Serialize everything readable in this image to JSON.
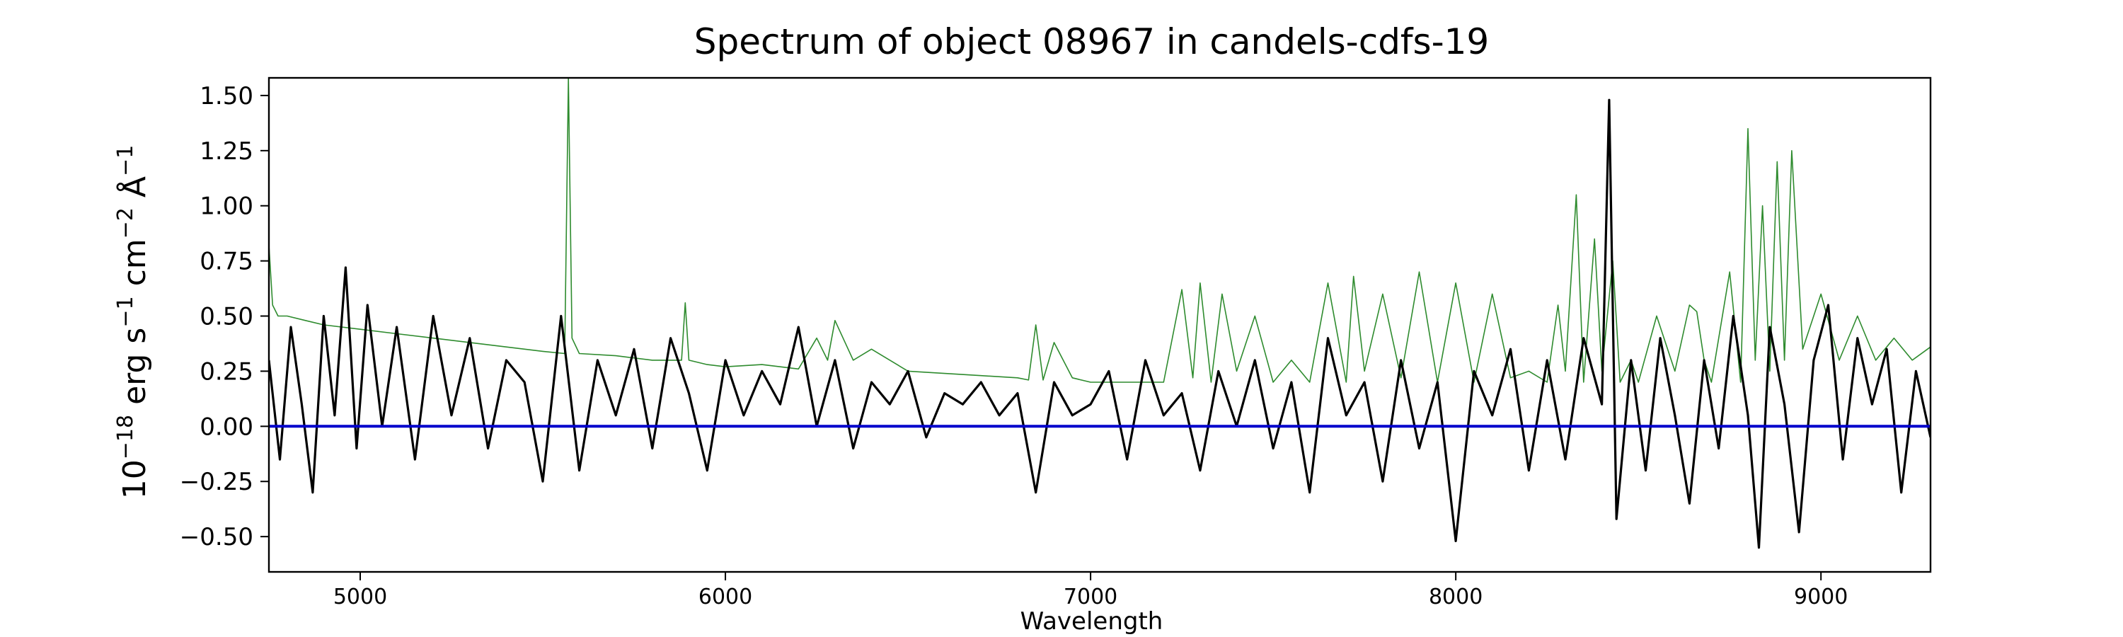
{
  "chart_data": {
    "type": "line",
    "title": "Spectrum of object 08967 in candels-cdfs-19",
    "xlabel": "Wavelength",
    "ylabel": {
      "base": "10",
      "exp1": "−18",
      "unit1": "erg s",
      "exp2": "−1",
      "unit2": "cm",
      "exp3": "−2",
      "unit3": "Å",
      "exp4": "−1"
    },
    "xlim": [
      4750,
      9300
    ],
    "ylim": [
      -0.66,
      1.58
    ],
    "xticks": [
      5000,
      6000,
      7000,
      8000,
      9000
    ],
    "xtick_labels": [
      "5000",
      "6000",
      "7000",
      "8000",
      "9000"
    ],
    "yticks": [
      -0.5,
      -0.25,
      0.0,
      0.25,
      0.5,
      0.75,
      1.0,
      1.25,
      1.5
    ],
    "ytick_labels": [
      "−0.50",
      "−0.25",
      "0.00",
      "0.25",
      "0.50",
      "0.75",
      "1.00",
      "1.25",
      "1.50"
    ],
    "grid": false,
    "series": [
      {
        "color": "#000000",
        "x": [
          4750,
          4780,
          4810,
          4840,
          4870,
          4900,
          4930,
          4960,
          4990,
          5020,
          5060,
          5100,
          5150,
          5200,
          5250,
          5300,
          5350,
          5400,
          5450,
          5500,
          5550,
          5600,
          5650,
          5700,
          5750,
          5800,
          5850,
          5900,
          5950,
          6000,
          6050,
          6100,
          6150,
          6200,
          6250,
          6300,
          6350,
          6400,
          6450,
          6500,
          6550,
          6600,
          6650,
          6700,
          6750,
          6800,
          6850,
          6900,
          6950,
          7000,
          7050,
          7100,
          7150,
          7200,
          7250,
          7300,
          7350,
          7400,
          7450,
          7500,
          7550,
          7600,
          7650,
          7700,
          7750,
          7800,
          7850,
          7900,
          7950,
          8000,
          8050,
          8100,
          8150,
          8200,
          8250,
          8300,
          8350,
          8400,
          8420,
          8440,
          8480,
          8520,
          8560,
          8600,
          8640,
          8680,
          8720,
          8760,
          8800,
          8830,
          8860,
          8900,
          8940,
          8980,
          9020,
          9060,
          9100,
          9140,
          9180,
          9220,
          9260,
          9300
        ],
        "y": [
          0.3,
          -0.15,
          0.45,
          0.1,
          -0.3,
          0.5,
          0.05,
          0.72,
          -0.1,
          0.55,
          0.0,
          0.45,
          -0.15,
          0.5,
          0.05,
          0.4,
          -0.1,
          0.3,
          0.2,
          -0.25,
          0.5,
          -0.2,
          0.3,
          0.05,
          0.35,
          -0.1,
          0.4,
          0.15,
          -0.2,
          0.3,
          0.05,
          0.25,
          0.1,
          0.45,
          0.0,
          0.3,
          -0.1,
          0.2,
          0.1,
          0.25,
          -0.05,
          0.15,
          0.1,
          0.2,
          0.05,
          0.15,
          -0.3,
          0.2,
          0.05,
          0.1,
          0.25,
          -0.15,
          0.3,
          0.05,
          0.15,
          -0.2,
          0.25,
          0.0,
          0.3,
          -0.1,
          0.2,
          -0.3,
          0.4,
          0.05,
          0.2,
          -0.25,
          0.3,
          -0.1,
          0.2,
          -0.52,
          0.25,
          0.05,
          0.35,
          -0.2,
          0.3,
          -0.15,
          0.4,
          0.1,
          1.48,
          -0.42,
          0.3,
          -0.2,
          0.4,
          0.05,
          -0.35,
          0.3,
          -0.1,
          0.5,
          0.05,
          -0.55,
          0.45,
          0.1,
          -0.48,
          0.3,
          0.55,
          -0.15,
          0.4,
          0.1,
          0.35,
          -0.3,
          0.25,
          -0.05
        ]
      },
      {
        "color": "#2e8b2e",
        "x": [
          4750,
          4760,
          4775,
          4800,
          4850,
          4900,
          5000,
          5100,
          5200,
          5300,
          5400,
          5500,
          5560,
          5570,
          5580,
          5600,
          5700,
          5800,
          5880,
          5890,
          5900,
          5950,
          6000,
          6100,
          6200,
          6250,
          6280,
          6300,
          6350,
          6400,
          6500,
          6600,
          6700,
          6800,
          6830,
          6850,
          6870,
          6900,
          6950,
          7000,
          7100,
          7200,
          7250,
          7280,
          7300,
          7330,
          7360,
          7400,
          7450,
          7500,
          7550,
          7600,
          7650,
          7700,
          7720,
          7750,
          7800,
          7850,
          7900,
          7950,
          8000,
          8050,
          8100,
          8150,
          8200,
          8250,
          8280,
          8300,
          8330,
          8350,
          8380,
          8400,
          8430,
          8450,
          8480,
          8500,
          8550,
          8600,
          8640,
          8660,
          8680,
          8700,
          8750,
          8780,
          8800,
          8820,
          8840,
          8860,
          8880,
          8900,
          8920,
          8950,
          9000,
          9050,
          9100,
          9150,
          9200,
          9250,
          9300
        ],
        "y": [
          0.82,
          0.55,
          0.5,
          0.5,
          0.48,
          0.46,
          0.44,
          0.42,
          0.4,
          0.38,
          0.36,
          0.34,
          0.33,
          1.58,
          0.4,
          0.33,
          0.32,
          0.3,
          0.3,
          0.56,
          0.3,
          0.28,
          0.27,
          0.28,
          0.26,
          0.4,
          0.3,
          0.48,
          0.3,
          0.35,
          0.25,
          0.24,
          0.23,
          0.22,
          0.21,
          0.46,
          0.21,
          0.38,
          0.22,
          0.2,
          0.2,
          0.2,
          0.62,
          0.22,
          0.65,
          0.2,
          0.6,
          0.25,
          0.5,
          0.2,
          0.3,
          0.2,
          0.65,
          0.2,
          0.68,
          0.25,
          0.6,
          0.22,
          0.7,
          0.2,
          0.65,
          0.2,
          0.6,
          0.22,
          0.25,
          0.2,
          0.55,
          0.25,
          1.05,
          0.2,
          0.85,
          0.25,
          0.75,
          0.2,
          0.3,
          0.2,
          0.5,
          0.25,
          0.55,
          0.52,
          0.3,
          0.2,
          0.7,
          0.2,
          1.35,
          0.3,
          1.0,
          0.25,
          1.2,
          0.3,
          1.25,
          0.35,
          0.6,
          0.3,
          0.5,
          0.3,
          0.4,
          0.3,
          0.36
        ]
      },
      {
        "color": "#0000cc",
        "x": [
          4750,
          9300
        ],
        "y": [
          0.0,
          0.0
        ]
      }
    ]
  }
}
